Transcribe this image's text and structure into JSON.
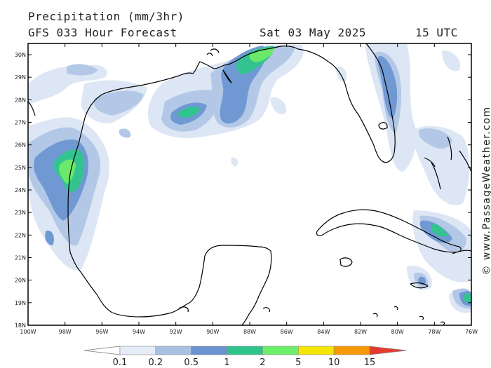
{
  "header": {
    "title": "Precipitation (mm/3hr)",
    "subtitle": "GFS 033 Hour Forecast",
    "date": "Sat 03 May 2025",
    "time": "15 UTC"
  },
  "copyright": "© www.PassageWeather.com",
  "axes": {
    "lat_labels": [
      "30N",
      "29N",
      "28N",
      "27N",
      "26N",
      "25N",
      "24N",
      "23N",
      "22N",
      "21N",
      "20N",
      "19N",
      "18N"
    ],
    "lon_labels": [
      "100W",
      "98W",
      "96W",
      "94W",
      "92W",
      "90W",
      "88W",
      "86W",
      "84W",
      "82W",
      "80W",
      "78W",
      "76W"
    ]
  },
  "legend": {
    "labels": [
      "0.1",
      "0.2",
      "0.5",
      "1",
      "2",
      "5",
      "10",
      "15"
    ],
    "colors": [
      "#e6ecf7",
      "#a9c1e0",
      "#6a93d2",
      "#30c48d",
      "#6cf06a",
      "#f4e600",
      "#f79a00",
      "#e63a2f"
    ]
  },
  "precip_colors": {
    "light": "#dce6f4",
    "low": "#b3c8e6",
    "mid": "#7099d4",
    "high": "#33c38f",
    "peak": "#6ce86a"
  }
}
